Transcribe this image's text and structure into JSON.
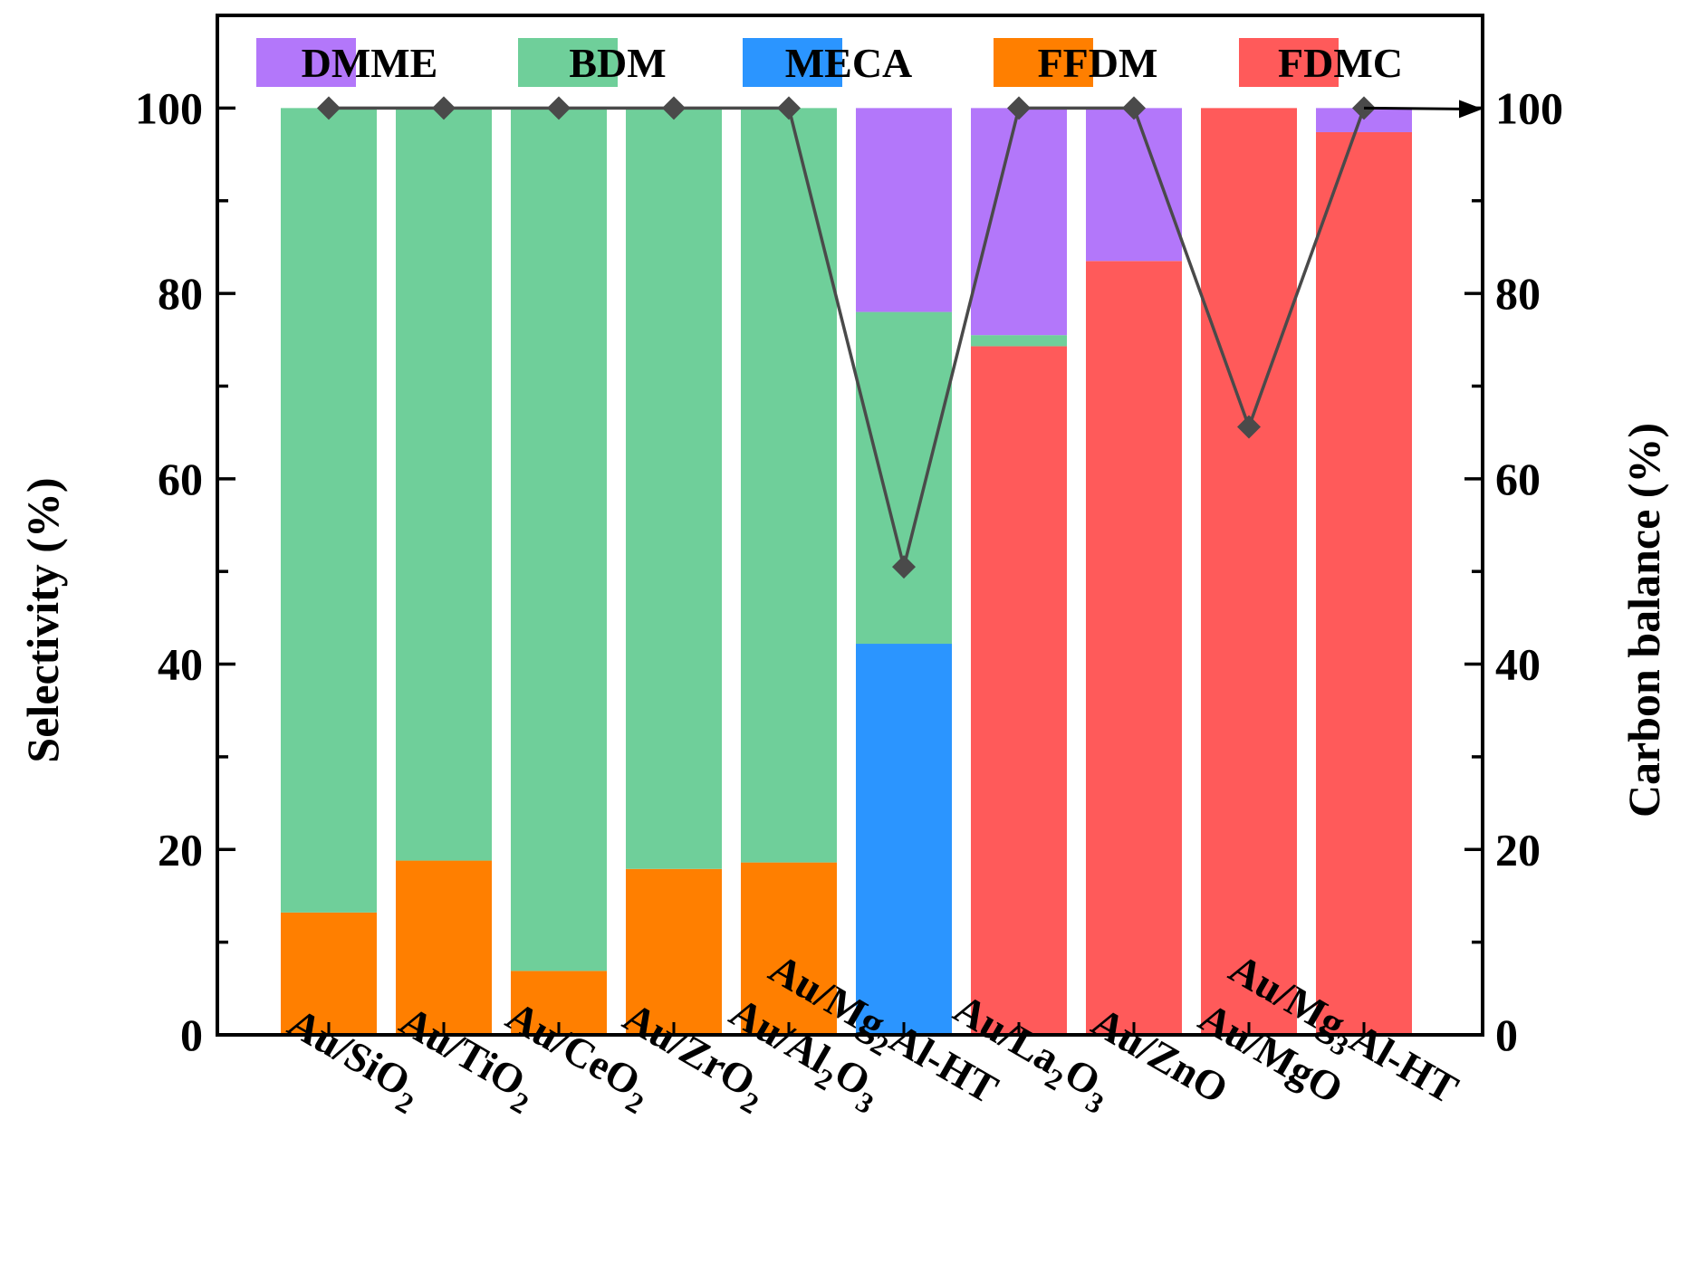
{
  "chart_data": {
    "type": "bar",
    "stacked": true,
    "categories": [
      {
        "base": "Au/SiO",
        "sub": "2",
        "tail": ""
      },
      {
        "base": "Au/TiO",
        "sub": "2",
        "tail": ""
      },
      {
        "base": "Au/CeO",
        "sub": "2",
        "tail": ""
      },
      {
        "base": "Au/ZrO",
        "sub": "2",
        "tail": ""
      },
      {
        "base": "Au/Al",
        "sub": "2",
        "mid": "O",
        "sub2": "3",
        "tail": ""
      },
      {
        "base": "Au/Mg",
        "sub": "2",
        "tail": "Al-HT"
      },
      {
        "base": "Au/La",
        "sub": "2",
        "mid": "O",
        "sub2": "3",
        "tail": ""
      },
      {
        "base": "Au/ZnO",
        "sub": "",
        "tail": ""
      },
      {
        "base": "Au/MgO",
        "sub": "",
        "tail": ""
      },
      {
        "base": "Au/Mg",
        "sub": "3",
        "tail": "Al-HT"
      }
    ],
    "series": [
      {
        "name": "FFDM",
        "color": "#ff7f00",
        "values": [
          13.2,
          18.8,
          6.9,
          17.9,
          18.6,
          0,
          0,
          0,
          0,
          0
        ]
      },
      {
        "name": "MECA",
        "color": "#2b95ff",
        "values": [
          0,
          0,
          0,
          0,
          0,
          42.2,
          0,
          0,
          0,
          0
        ]
      },
      {
        "name": "FDMC",
        "color": "#ff5a5a",
        "values": [
          0,
          0,
          0,
          0,
          0,
          0,
          74.3,
          83.5,
          100,
          97.4
        ]
      },
      {
        "name": "BDM",
        "color": "#6fcf9a",
        "values": [
          86.8,
          81.2,
          93.1,
          82.1,
          81.4,
          35.8,
          1.2,
          0,
          0,
          0
        ]
      },
      {
        "name": "DMME",
        "color": "#b377fa",
        "values": [
          0,
          0,
          0,
          0,
          0,
          22.0,
          24.5,
          16.5,
          0,
          2.6
        ]
      }
    ],
    "legend_order": [
      "DMME",
      "BDM",
      "MECA",
      "FFDM",
      "FDMC"
    ],
    "carbon_balance": {
      "name": "Carbon balance",
      "color": "#4a4a4a",
      "values": [
        100,
        100,
        100,
        100,
        100,
        50.5,
        100,
        100,
        65.6,
        100
      ]
    },
    "ylabel": "Selectivity (%)",
    "y2label": "Carbon balance (%)",
    "ylim": [
      0,
      110
    ],
    "y2lim": [
      0,
      110
    ],
    "yticks": [
      0,
      20,
      40,
      60,
      80,
      100
    ],
    "y2ticks": [
      0,
      20,
      40,
      60,
      80,
      100
    ]
  }
}
